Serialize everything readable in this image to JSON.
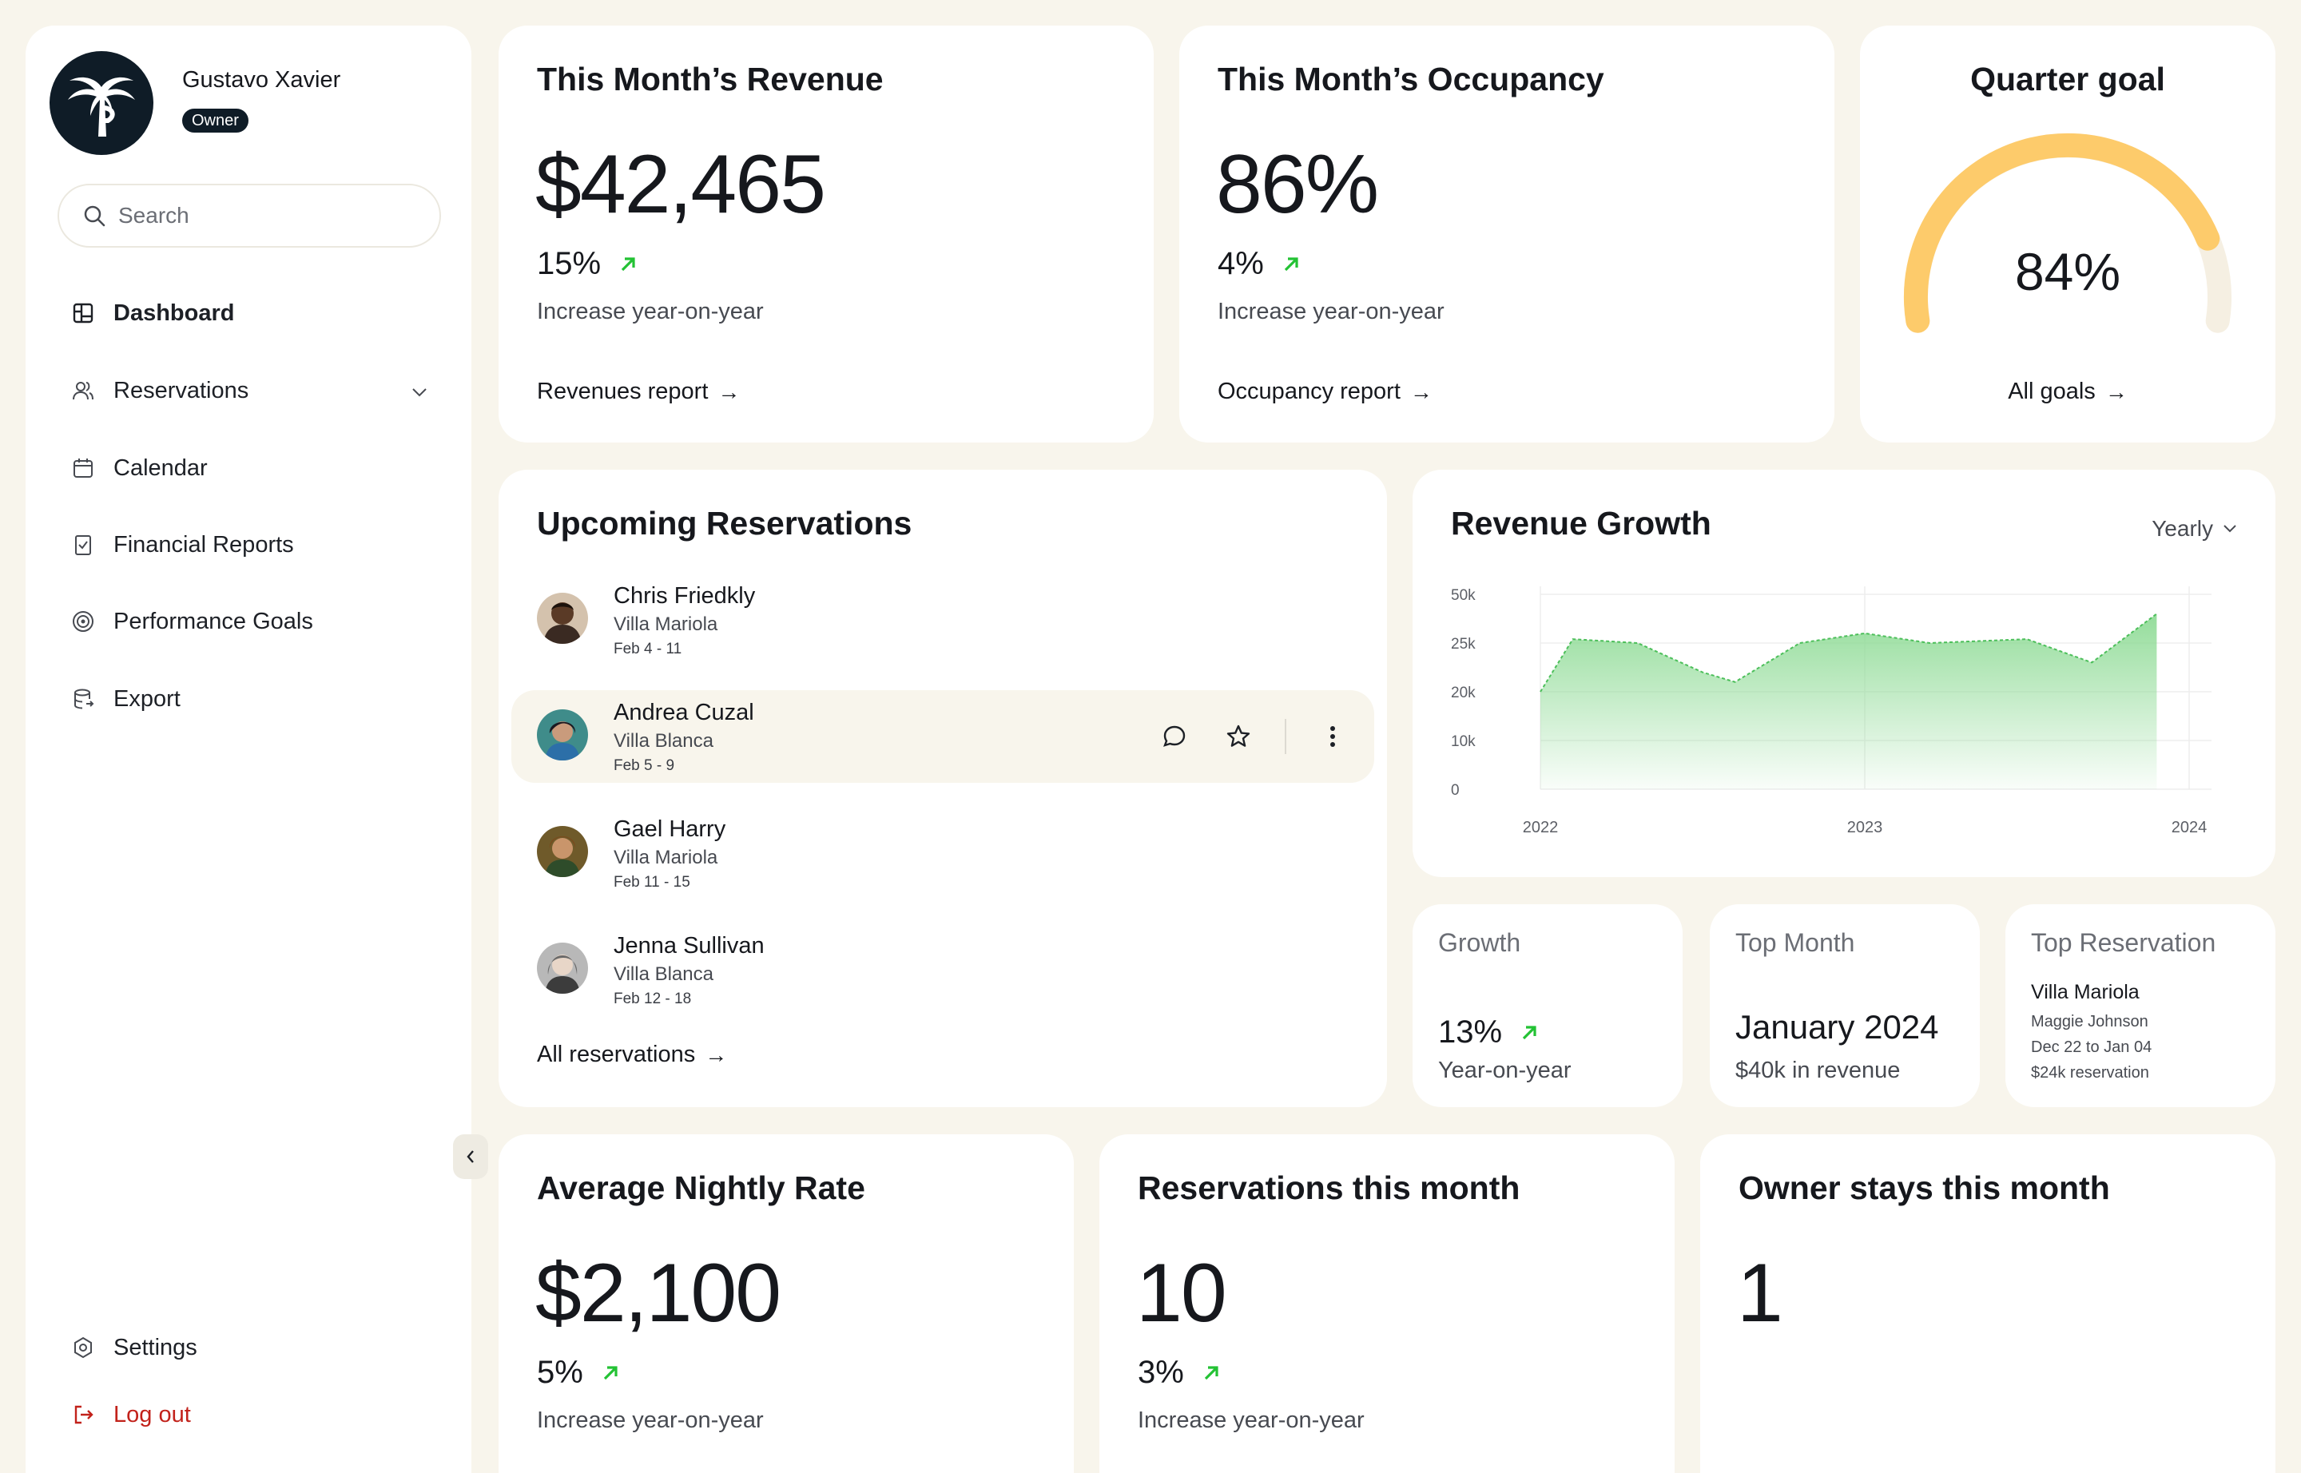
{
  "user": {
    "name": "Gustavo Xavier",
    "role": "Owner"
  },
  "search": {
    "placeholder": "Search"
  },
  "nav": {
    "dashboard": "Dashboard",
    "reservations": "Reservations",
    "calendar": "Calendar",
    "financial_reports": "Financial Reports",
    "performance_goals": "Performance Goals",
    "export": "Export",
    "settings": "Settings",
    "logout": "Log out"
  },
  "revenue": {
    "title": "This Month’s Revenue",
    "value": "$42,465",
    "pct": "15%",
    "caption": "Increase year-on-year",
    "link": "Revenues report"
  },
  "occupancy": {
    "title": "This Month’s Occupancy",
    "value": "86%",
    "pct": "4%",
    "caption": "Increase year-on-year",
    "link": "Occupancy report"
  },
  "quarter_goal": {
    "title": "Quarter goal",
    "value": "84%",
    "progress": 0.84,
    "link": "All goals"
  },
  "upcoming": {
    "title": "Upcoming Reservations",
    "items": [
      {
        "name": "Chris Friedkly",
        "villa": "Villa Mariola",
        "dates": "Feb 4 - 11"
      },
      {
        "name": "Andrea Cuzal",
        "villa": "Villa Blanca",
        "dates": "Feb 5 - 9"
      },
      {
        "name": "Gael Harry",
        "villa": "Villa Mariola",
        "dates": "Feb 11 - 15"
      },
      {
        "name": "Jenna Sullivan",
        "villa": "Villa Blanca",
        "dates": "Feb 12 - 18"
      }
    ],
    "link": "All reservations"
  },
  "revenue_growth": {
    "title": "Revenue Growth",
    "period": "Yearly"
  },
  "chart_data": {
    "type": "area",
    "title": "Revenue Growth",
    "y_ticks": [
      "50k",
      "25k",
      "20k",
      "10k",
      "0"
    ],
    "x_ticks": [
      "2022",
      "2023",
      "2024"
    ],
    "x": [
      2022.0,
      2022.1,
      2022.3,
      2022.5,
      2022.6,
      2022.8,
      2023.0,
      2023.2,
      2023.5,
      2023.7,
      2023.9
    ],
    "values": [
      20,
      27,
      25,
      22,
      21,
      25,
      30,
      25,
      27,
      23,
      40
    ],
    "note_y_axis": "categorical ticks 0,10k,20k,25k,50k equally spaced",
    "colors": {
      "line": "#4cbf5a",
      "fill": "#a6e3ab"
    },
    "grid": true
  },
  "growth": {
    "label": "Growth",
    "pct": "13%",
    "caption": "Year-on-year"
  },
  "top_month": {
    "label": "Top Month",
    "value": "January 2024",
    "caption": "$40k in revenue"
  },
  "top_reservation": {
    "label": "Top Reservation",
    "villa": "Villa Mariola",
    "guest": "Maggie Johnson",
    "dates": "Dec 22 to Jan 04",
    "amount": "$24k reservation"
  },
  "nightly_rate": {
    "title": "Average Nightly Rate",
    "value": "$2,100",
    "pct": "5%",
    "caption": "Increase year-on-year"
  },
  "reservations_month": {
    "title": "Reservations this month",
    "value": "10",
    "pct": "3%",
    "caption": "Increase year-on-year"
  },
  "owner_stays": {
    "title": "Owner stays this month",
    "value": "1"
  },
  "colors": {
    "background": "#f8f5ec",
    "accent_dark": "#0f1c27",
    "gauge": "#fdcb6b",
    "positive": "#23c234",
    "danger": "#c2221b"
  }
}
